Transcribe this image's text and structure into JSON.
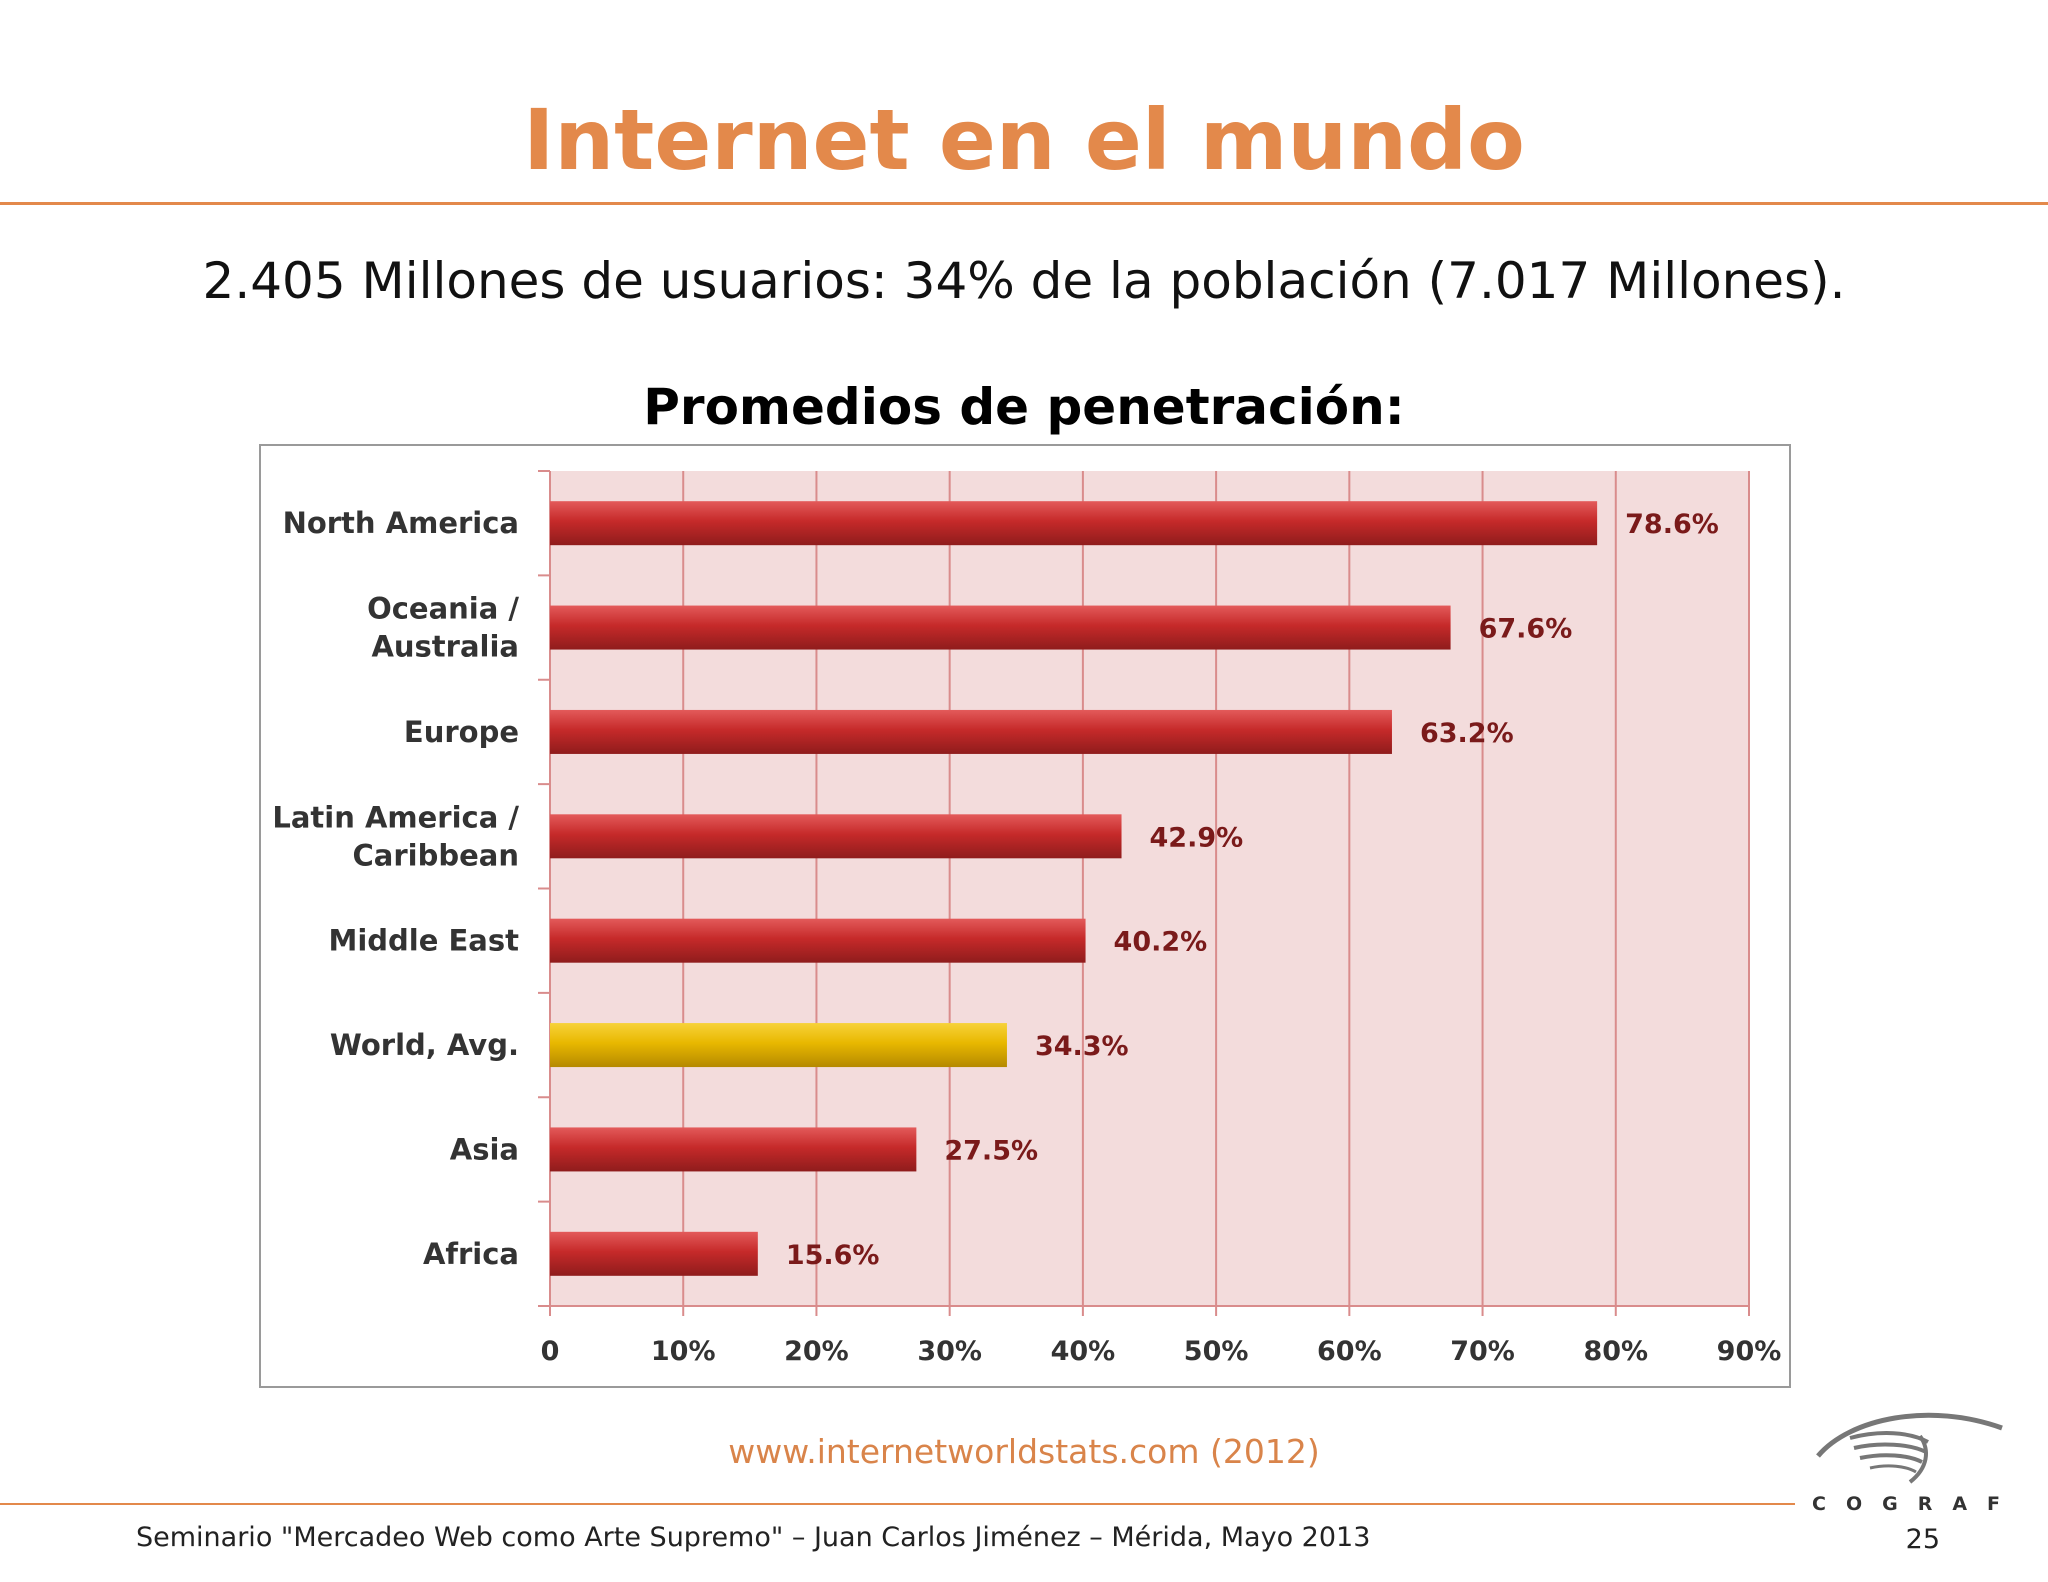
{
  "slide": {
    "title": "Internet en el mundo",
    "subtitle": "2.405 Millones de usuarios: 34% de la población (7.017 Millones).",
    "chart_heading": "Promedios de penetración:",
    "source": "www.internetworldstats.com (2012)",
    "footer": "Seminario \"Mercadeo Web como Arte Supremo\" – Juan Carlos Jiménez – Mérida, Mayo 2013",
    "page_number": "25",
    "logo_text": "COGRAF"
  },
  "colors": {
    "accent": "#e3894b",
    "bar": "#c62a2a",
    "highlight_bar": "#e8b800",
    "plot_bg": "#f3dcdc",
    "gridline": "#d98c8c",
    "label_text": "#333333",
    "value_text": "#7a1a1a"
  },
  "chart_data": {
    "type": "bar",
    "orientation": "horizontal",
    "categories": [
      "North America",
      "Oceania / Australia",
      "Europe",
      "Latin America / Caribbean",
      "Middle East",
      "World, Avg.",
      "Asia",
      "Africa"
    ],
    "category_lines": [
      [
        "North America"
      ],
      [
        "Oceania  /",
        "Australia"
      ],
      [
        "Europe"
      ],
      [
        "Latin America /",
        "Caribbean"
      ],
      [
        "Middle East"
      ],
      [
        "World, Avg."
      ],
      [
        "Asia"
      ],
      [
        "Africa"
      ]
    ],
    "values": [
      78.6,
      67.6,
      63.2,
      42.9,
      40.2,
      34.3,
      27.5,
      15.6
    ],
    "data_labels": [
      "78.6%",
      "67.6%",
      "63.2%",
      "42.9%",
      "40.2%",
      "34.3%",
      "27.5%",
      "15.6%"
    ],
    "highlight_category": "World, Avg.",
    "xlim": [
      0,
      90
    ],
    "xticks": [
      0,
      10,
      20,
      30,
      40,
      50,
      60,
      70,
      80,
      90
    ],
    "xtick_labels": [
      "0",
      "10%",
      "20%",
      "30%",
      "40%",
      "50%",
      "60%",
      "70%",
      "80%",
      "90%"
    ],
    "title": "",
    "xlabel": "",
    "ylabel": "",
    "grid": true,
    "legend": "none"
  }
}
